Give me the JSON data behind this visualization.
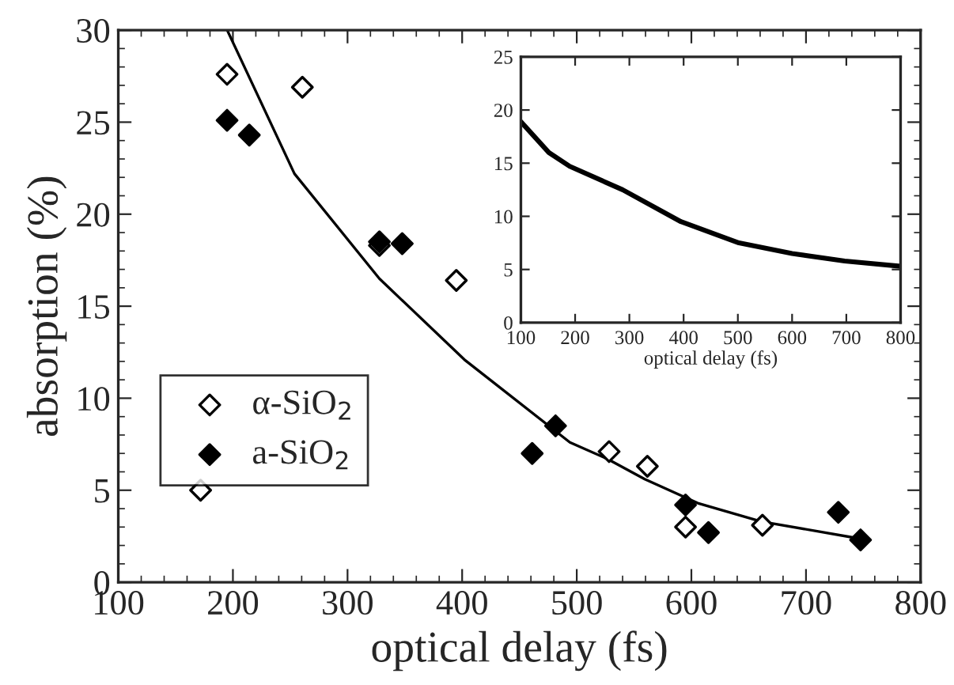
{
  "chart_data": [
    {
      "type": "scatter",
      "xlabel": "optical delay (fs)",
      "ylabel": "absorption (%)",
      "xlim": [
        100,
        800
      ],
      "ylim": [
        0,
        30
      ],
      "xticks": [
        100,
        200,
        300,
        400,
        500,
        600,
        700,
        800
      ],
      "yticks": [
        0,
        5,
        10,
        15,
        20,
        25,
        30
      ],
      "grid": false,
      "legend": "left",
      "series": [
        {
          "name": "α-SiO$_{2}$",
          "marker": "diamond",
          "color": "#ffffff",
          "x": [
            171.8,
            194.9,
            260.6,
            327.8,
            394.9,
            528.2,
            561.6,
            594.9,
            662
          ],
          "values": [
            5.0,
            27.6,
            26.9,
            18.3,
            16.4,
            7.1,
            6.3,
            3.0,
            3.1
          ]
        },
        {
          "name": "a-SiO$_{2}$",
          "marker": "diamond",
          "color": "#000000",
          "x": [
            194.9,
            214.3,
            327.8,
            347.7,
            461.1,
            481.5,
            594.9,
            614.9,
            728.2,
            747.6
          ],
          "values": [
            25.1,
            24.3,
            18.5,
            18.4,
            7.0,
            8.5,
            4.2,
            2.7,
            3.8,
            2.3
          ]
        },
        {
          "type": "line",
          "color": "#000000",
          "x": [
            195,
            253.7,
            327.8,
            401.9,
            494,
            526.8,
            559.3,
            605.6,
            661,
            744
          ],
          "values": [
            30,
            22.2,
            16.5,
            12.1,
            7.6,
            6.7,
            5.6,
            4.3,
            3.3,
            2.4
          ]
        }
      ]
    },
    {
      "type": "line",
      "xlabel": "optical delay (fs)",
      "xlim": [
        100,
        800
      ],
      "ylim": [
        0,
        25
      ],
      "xticks": [
        100,
        200,
        300,
        400,
        500,
        600,
        700,
        800
      ],
      "yticks": [
        0,
        5,
        10,
        15,
        20,
        25
      ],
      "grid": false,
      "legend": false,
      "series": [
        {
          "color": "#000000",
          "x": [
            100,
            151.6,
            190,
            287.5,
            395,
            502,
            600,
            697,
            800
          ],
          "values": [
            18.9,
            16.0,
            14.7,
            12.5,
            9.5,
            7.5,
            6.5,
            5.8,
            5.3
          ]
        }
      ]
    }
  ]
}
